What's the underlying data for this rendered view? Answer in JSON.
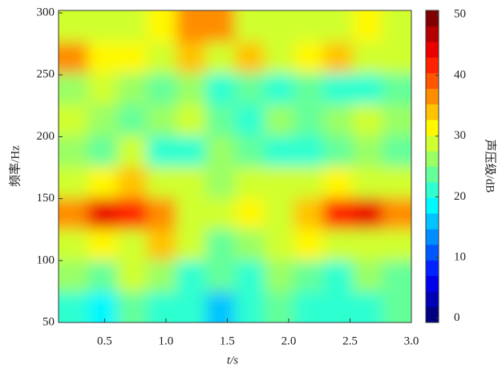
{
  "chart_data": {
    "type": "heatmap",
    "x_label": "t/s",
    "y_label": "频率/Hz",
    "xlim": [
      0.125,
      3.0
    ],
    "xticks": [
      0.5,
      {
        "value": 1,
        "label": "1.0"
      },
      1.5,
      {
        "value": 2,
        "label": "2.0"
      },
      2.5,
      {
        "value": 3,
        "label": "3.0"
      }
    ],
    "ylim": [
      50,
      302
    ],
    "yticks": [
      50,
      100,
      150,
      200,
      250,
      300
    ],
    "colormap": "jet",
    "colorbar": {
      "label": "声压级/dB",
      "clim": [
        -0.7,
        50.7
      ],
      "ticks": [
        0,
        10,
        20,
        30,
        40,
        50
      ]
    },
    "z": [
      [
        22,
        18,
        24,
        20,
        22,
        16,
        20,
        24,
        22,
        20,
        22,
        24
      ],
      [
        26,
        24,
        28,
        26,
        22,
        24,
        20,
        26,
        24,
        22,
        26,
        24
      ],
      [
        30,
        32,
        30,
        34,
        28,
        24,
        26,
        28,
        32,
        28,
        30,
        28
      ],
      [
        38,
        44,
        42,
        36,
        30,
        28,
        32,
        30,
        34,
        42,
        44,
        36
      ],
      [
        30,
        32,
        34,
        30,
        28,
        26,
        30,
        28,
        30,
        32,
        30,
        28
      ],
      [
        26,
        24,
        28,
        22,
        20,
        26,
        24,
        22,
        20,
        24,
        26,
        24
      ],
      [
        28,
        26,
        24,
        26,
        28,
        24,
        22,
        26,
        24,
        26,
        28,
        26
      ],
      [
        26,
        28,
        26,
        24,
        26,
        22,
        24,
        20,
        24,
        22,
        20,
        24
      ],
      [
        38,
        32,
        32,
        30,
        34,
        30,
        34,
        30,
        32,
        34,
        30,
        28
      ],
      [
        28,
        30,
        28,
        32,
        38,
        36,
        28,
        30,
        28,
        30,
        32,
        28
      ]
    ]
  }
}
